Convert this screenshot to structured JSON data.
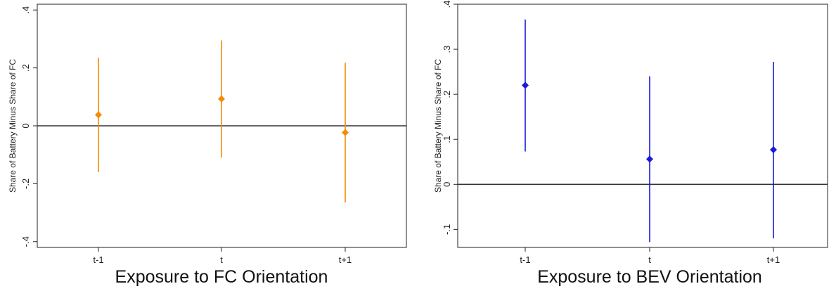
{
  "chart_data": [
    {
      "type": "scatter",
      "subtype": "point-estimate-with-confidence-interval",
      "xlabel": "Exposure to FC Orientation",
      "ylabel": "Share of Battery Minus Share of FC",
      "categories": [
        "t-1",
        "t",
        "t+1"
      ],
      "yticks": [
        -0.4,
        -0.2,
        0,
        0.2,
        0.4
      ],
      "ytick_labels": [
        "-.4",
        "-.2",
        "0",
        ".2",
        ".4"
      ],
      "ylim": [
        -0.42,
        0.42
      ],
      "reference_line": 0,
      "grid": false,
      "color": "#f28c00",
      "marker": "diamond",
      "points": [
        {
          "x": "t-1",
          "estimate": 0.038,
          "ci_low": -0.16,
          "ci_high": 0.235
        },
        {
          "x": "t",
          "estimate": 0.093,
          "ci_low": -0.11,
          "ci_high": 0.295
        },
        {
          "x": "t+1",
          "estimate": -0.023,
          "ci_low": -0.265,
          "ci_high": 0.218
        }
      ]
    },
    {
      "type": "scatter",
      "subtype": "point-estimate-with-confidence-interval",
      "xlabel": "Exposure to BEV Orientation",
      "ylabel": "Share of Battery Minus Share of FC",
      "categories": [
        "t-1",
        "t",
        "t+1"
      ],
      "yticks": [
        -0.1,
        0,
        0.1,
        0.2,
        0.3,
        0.4
      ],
      "ytick_labels": [
        "-.1",
        "0",
        ".1",
        ".2",
        ".3",
        ".4"
      ],
      "ylim": [
        -0.14,
        0.4
      ],
      "reference_line": 0,
      "grid": false,
      "color": "#1a1adb",
      "marker": "diamond",
      "points": [
        {
          "x": "t-1",
          "estimate": 0.22,
          "ci_low": 0.073,
          "ci_high": 0.366
        },
        {
          "x": "t",
          "estimate": 0.056,
          "ci_low": -0.128,
          "ci_high": 0.24
        },
        {
          "x": "t+1",
          "estimate": 0.077,
          "ci_low": -0.12,
          "ci_high": 0.272
        }
      ]
    }
  ]
}
